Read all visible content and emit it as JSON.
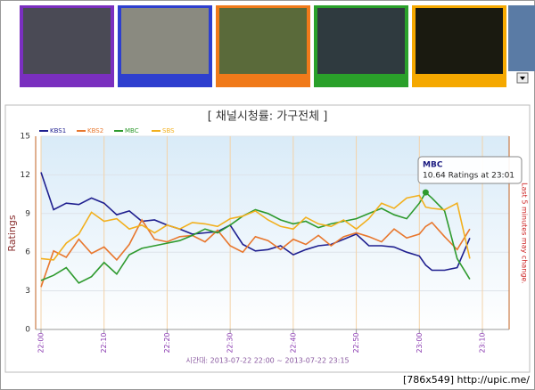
{
  "chart_data": {
    "type": "line",
    "title": "[ 채널시청률: 가구전체 ]",
    "y_label": "Ratings",
    "y2_label": "Last 5 minutes may change.",
    "x_caption": "시간대: 2013-07-22 22:00 ~ 2013-07-22 23:15",
    "x": [
      0,
      2,
      4,
      6,
      8,
      10,
      12,
      14,
      16,
      18,
      20,
      22,
      24,
      26,
      28,
      30,
      32,
      34,
      36,
      38,
      40,
      42,
      44,
      46,
      48,
      50,
      52,
      54,
      56,
      58,
      60,
      61,
      62,
      64,
      66,
      68
    ],
    "xlim": [
      0,
      70
    ],
    "xticks": [
      {
        "value": 0,
        "label": "22:00"
      },
      {
        "value": 10,
        "label": "22:10"
      },
      {
        "value": 20,
        "label": "22:20"
      },
      {
        "value": 30,
        "label": "22:30"
      },
      {
        "value": 40,
        "label": "22:40"
      },
      {
        "value": 50,
        "label": "22:50"
      },
      {
        "value": 60,
        "label": "23:00"
      },
      {
        "value": 70,
        "label": "23:10"
      }
    ],
    "ylim": [
      0,
      15
    ],
    "yticks": [
      0,
      3,
      6,
      9,
      12,
      15
    ],
    "grid": true,
    "legend": "top-left",
    "series": [
      {
        "name": "KBS1",
        "color": "#1f1f8f",
        "values": [
          12.2,
          9.3,
          9.8,
          9.7,
          10.2,
          9.8,
          8.9,
          9.2,
          8.4,
          8.5,
          8.1,
          7.8,
          7.4,
          7.5,
          7.6,
          8.1,
          6.6,
          6.1,
          6.2,
          6.5,
          5.8,
          6.2,
          6.5,
          6.6,
          7.0,
          7.4,
          6.5,
          6.5,
          6.4,
          6.0,
          5.7,
          5.0,
          4.6,
          4.6,
          4.8,
          7.1
        ]
      },
      {
        "name": "KBS2",
        "color": "#e8772e",
        "values": [
          3.3,
          6.1,
          5.6,
          7.0,
          5.9,
          6.4,
          5.4,
          6.6,
          8.5,
          7.0,
          6.8,
          7.2,
          7.3,
          6.8,
          7.7,
          6.5,
          6.0,
          7.2,
          6.9,
          6.2,
          7.0,
          6.6,
          7.3,
          6.5,
          7.2,
          7.5,
          7.2,
          6.8,
          7.8,
          7.1,
          7.4,
          8.0,
          8.3,
          7.2,
          6.2,
          7.8
        ]
      },
      {
        "name": "MBC",
        "color": "#2e9a2e",
        "values": [
          3.8,
          4.2,
          4.8,
          3.6,
          4.1,
          5.2,
          4.3,
          5.8,
          6.3,
          6.5,
          6.7,
          6.9,
          7.3,
          7.8,
          7.5,
          8.1,
          8.8,
          9.3,
          9.0,
          8.5,
          8.2,
          8.4,
          7.9,
          8.2,
          8.4,
          8.6,
          9.0,
          9.4,
          8.9,
          8.6,
          9.8,
          10.64,
          10.2,
          9.2,
          5.5,
          3.9
        ]
      },
      {
        "name": "SBS",
        "color": "#f2b01e",
        "values": [
          5.5,
          5.4,
          6.7,
          7.4,
          9.1,
          8.4,
          8.6,
          7.8,
          8.1,
          7.5,
          8.1,
          7.8,
          8.3,
          8.2,
          8.0,
          8.6,
          8.8,
          9.2,
          8.5,
          8.0,
          7.8,
          8.7,
          8.2,
          8.0,
          8.5,
          7.8,
          8.6,
          9.8,
          9.4,
          10.2,
          10.4,
          9.5,
          9.4,
          9.3,
          9.8,
          5.5
        ]
      }
    ],
    "tooltip": {
      "series": 2,
      "index": 31,
      "title": "MBC",
      "text": "10.64 Ratings at 23:01"
    }
  },
  "watermark": "[786x549] http://upic.me/"
}
